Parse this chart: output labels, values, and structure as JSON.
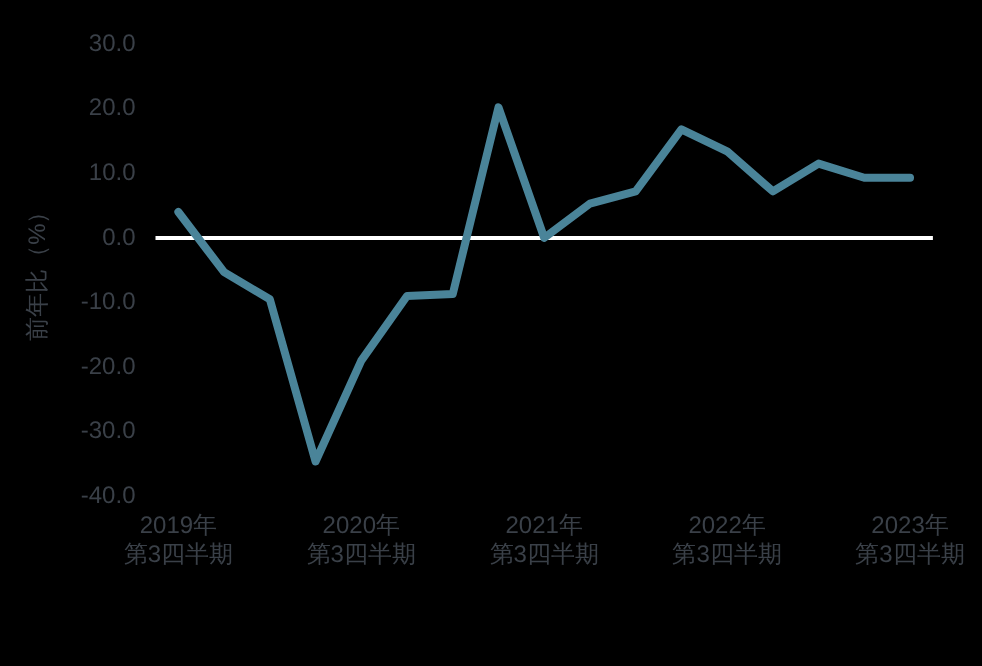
{
  "chart_data": {
    "type": "line",
    "ylabel": "前年比（%）",
    "categories": [
      "2019年第3四半期",
      null,
      null,
      null,
      "2020年第3四半期",
      null,
      null,
      null,
      "2021年第3四半期",
      null,
      null,
      null,
      "2022年第3四半期",
      null,
      null,
      null,
      "2023年第3四半期"
    ],
    "series": [
      {
        "color": "#4a8499",
        "values": [
          4.0,
          -5.3,
          -9.5,
          -34.6,
          -19.0,
          -9.0,
          -8.7,
          20.2,
          0.0,
          5.3,
          7.2,
          16.8,
          13.4,
          7.2,
          11.5,
          9.3,
          9.3
        ]
      }
    ],
    "ylim": [
      -40,
      30
    ],
    "yticks": [
      {
        "value": -40,
        "label": "-40.0"
      },
      {
        "value": -30,
        "label": "-30.0"
      },
      {
        "value": -20,
        "label": "-20.0"
      },
      {
        "value": -10,
        "label": "-10.0"
      },
      {
        "value": 0,
        "label": "0.0"
      },
      {
        "value": 10,
        "label": "10.0"
      },
      {
        "value": 20,
        "label": "20.0"
      },
      {
        "value": 30,
        "label": "30.0"
      }
    ],
    "ref_lines": [
      {
        "axis": "y",
        "value": 0,
        "color": "#ffffff"
      }
    ],
    "legend": false,
    "marker": "none",
    "line_style": "solid"
  }
}
